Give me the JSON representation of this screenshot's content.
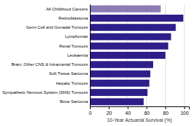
{
  "chart_data": {
    "type": "bar",
    "orientation": "horizontal",
    "categories": [
      "Bone Sarcoma",
      "Sympathetic Nervous System (SNS) Tumours",
      "Hepatic Tumours",
      "Soft Tissue Sarcoma",
      "Brain, Other CNS & Intracranial Tumours",
      "Leukaemia",
      "Renal Tumours",
      "Lymphomas",
      "Germ Cell and Gonadal Tumours",
      "Retinoblastoma",
      "All Childhood Cancers"
    ],
    "values": [
      57,
      61,
      63,
      64,
      67,
      80,
      83,
      86,
      91,
      99,
      75
    ],
    "colors": [
      "#2D1E8A",
      "#2D1E8A",
      "#2D1E8A",
      "#2D1E8A",
      "#2D1E8A",
      "#2D1E8A",
      "#2D1E8A",
      "#2D1E8A",
      "#2D1E8A",
      "#2D1E8A",
      "#8B7CB5"
    ],
    "xlabel": "10-Year Actuarial Survival (%)",
    "xlim": [
      0,
      105
    ],
    "xticks": [
      0,
      20,
      40,
      60,
      80,
      100
    ],
    "grid": true
  }
}
